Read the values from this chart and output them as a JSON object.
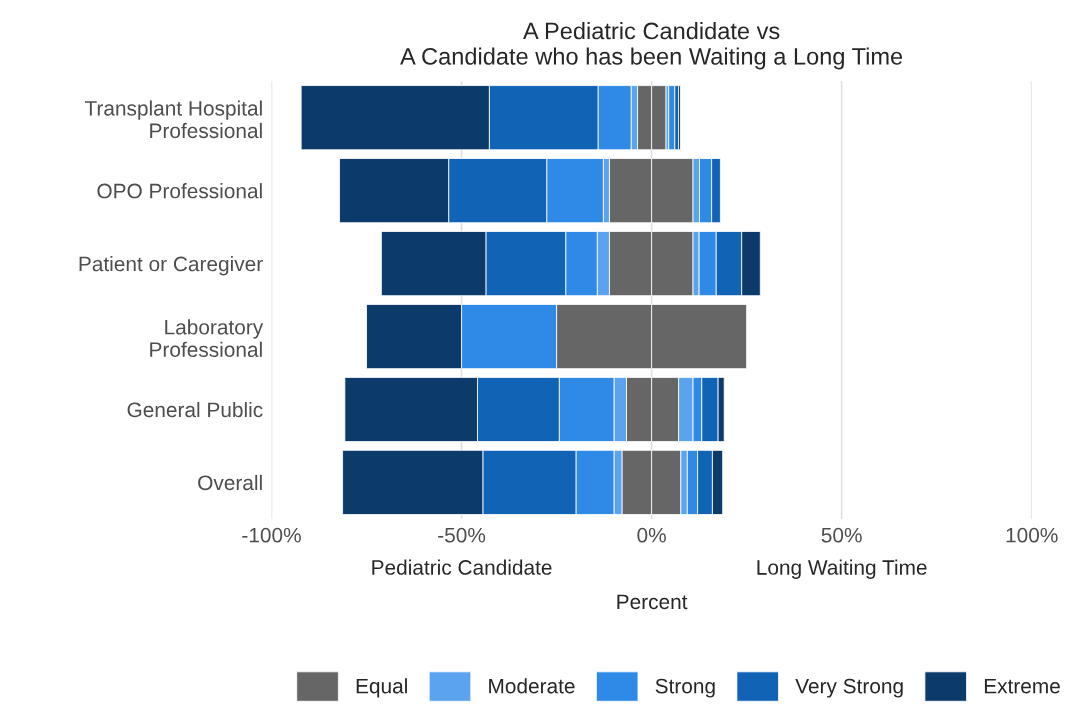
{
  "chart_data": {
    "type": "bar",
    "orientation": "horizontal",
    "stacked": true,
    "title": "A Pediatric Candidate vs\nA Candidate who has been Waiting a Long Time",
    "xlabel": "Percent",
    "annotations": [
      "Pediatric Candidate",
      "Long Waiting Time"
    ],
    "categories": [
      "Transplant Hospital\nProfessional",
      "OPO Professional",
      "Patient or Caregiver",
      "Laboratory\nProfessional",
      "General Public",
      "Overall"
    ],
    "series": [
      {
        "name": "Equal",
        "color": "#666666",
        "values": [
          -3.7,
          -11.1,
          -11.1,
          -25,
          -6.6,
          -7.8
        ]
      },
      {
        "color": "#666666",
        "values": [
          3.8,
          10.9,
          10.9,
          25,
          7.1,
          7.7
        ]
      },
      {
        "name": "Moderate",
        "color": "#5ba3ee",
        "values": [
          -1.7,
          -1.6,
          -3.2,
          0,
          -3.3,
          -2.1
        ]
      },
      {
        "color": "#5ba3ee",
        "values": [
          0.7,
          1.7,
          1.6,
          0,
          3.8,
          1.7
        ]
      },
      {
        "name": "Strong",
        "color": "#2e8ae6",
        "values": [
          -8.7,
          -14.9,
          -8.3,
          -25,
          -14.4,
          -10.0
        ]
      },
      {
        "color": "#2e8ae6",
        "values": [
          1.6,
          3.2,
          4.5,
          0,
          2.3,
          2.7
        ]
      },
      {
        "name": "Very Strong",
        "color": "#1163b6",
        "values": [
          -28.6,
          -25.8,
          -21.0,
          0,
          -21.5,
          -24.5
        ]
      },
      {
        "color": "#1163b6",
        "values": [
          1.0,
          2.3,
          6.7,
          0,
          4.3,
          3.9
        ]
      },
      {
        "name": "Extreme",
        "color": "#0b3a6b",
        "values": [
          -49.5,
          -28.7,
          -27.5,
          -25,
          -34.9,
          -36.9
        ]
      },
      {
        "color": "#0b3a6b",
        "values": [
          0.5,
          0,
          4.9,
          0,
          1.6,
          2.7
        ]
      }
    ],
    "xlim": [
      -100,
      100
    ],
    "xticks": [
      {
        "value": -100,
        "label": "-100%"
      },
      {
        "value": -50,
        "label": "-50%"
      },
      {
        "value": 0,
        "label": "0%"
      },
      {
        "value": 50,
        "label": "50%"
      },
      {
        "value": 100,
        "label": "100%"
      }
    ],
    "grid": "x",
    "legend": "bottom"
  }
}
